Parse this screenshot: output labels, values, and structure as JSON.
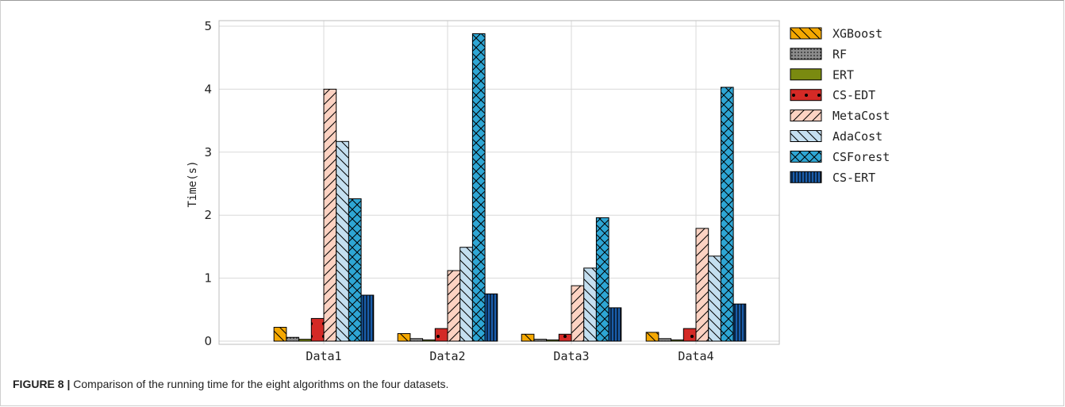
{
  "chart_data": {
    "type": "bar",
    "title": "",
    "xlabel": "",
    "ylabel": "Time(s)",
    "ylim": [
      0,
      5
    ],
    "yticks": [
      0,
      1,
      2,
      3,
      4,
      5
    ],
    "grid": true,
    "legend_position": "right",
    "categories": [
      "Data1",
      "Data2",
      "Data3",
      "Data4"
    ],
    "series": [
      {
        "name": "XGBoost",
        "color": "#f5a800",
        "hatch": "backslash",
        "values": [
          0.22,
          0.12,
          0.11,
          0.14
        ]
      },
      {
        "name": "RF",
        "color": "#8c8c8c",
        "hatch": "dots",
        "values": [
          0.06,
          0.04,
          0.03,
          0.04
        ]
      },
      {
        "name": "ERT",
        "color": "#7a8a10",
        "hatch": "none",
        "values": [
          0.03,
          0.02,
          0.02,
          0.02
        ]
      },
      {
        "name": "CS-EDT",
        "color": "#d42a26",
        "hatch": "bigdots",
        "values": [
          0.36,
          0.2,
          0.11,
          0.2
        ]
      },
      {
        "name": "MetaCost",
        "color": "#fcd2c2",
        "hatch": "slash",
        "values": [
          4.0,
          1.12,
          0.88,
          1.79
        ]
      },
      {
        "name": "AdaCost",
        "color": "#c4dff0",
        "hatch": "backslash",
        "values": [
          3.17,
          1.49,
          1.16,
          1.35
        ]
      },
      {
        "name": "CSForest",
        "color": "#2ea6d4",
        "hatch": "cross",
        "values": [
          2.26,
          4.88,
          1.96,
          4.03
        ]
      },
      {
        "name": "CS-ERT",
        "color": "#1a5dab",
        "hatch": "vertical",
        "values": [
          0.73,
          0.75,
          0.53,
          0.59
        ]
      }
    ]
  },
  "caption": {
    "label": "FIGURE 8 |",
    "text": " Comparison of the running time for the eight algorithms on the four datasets."
  }
}
